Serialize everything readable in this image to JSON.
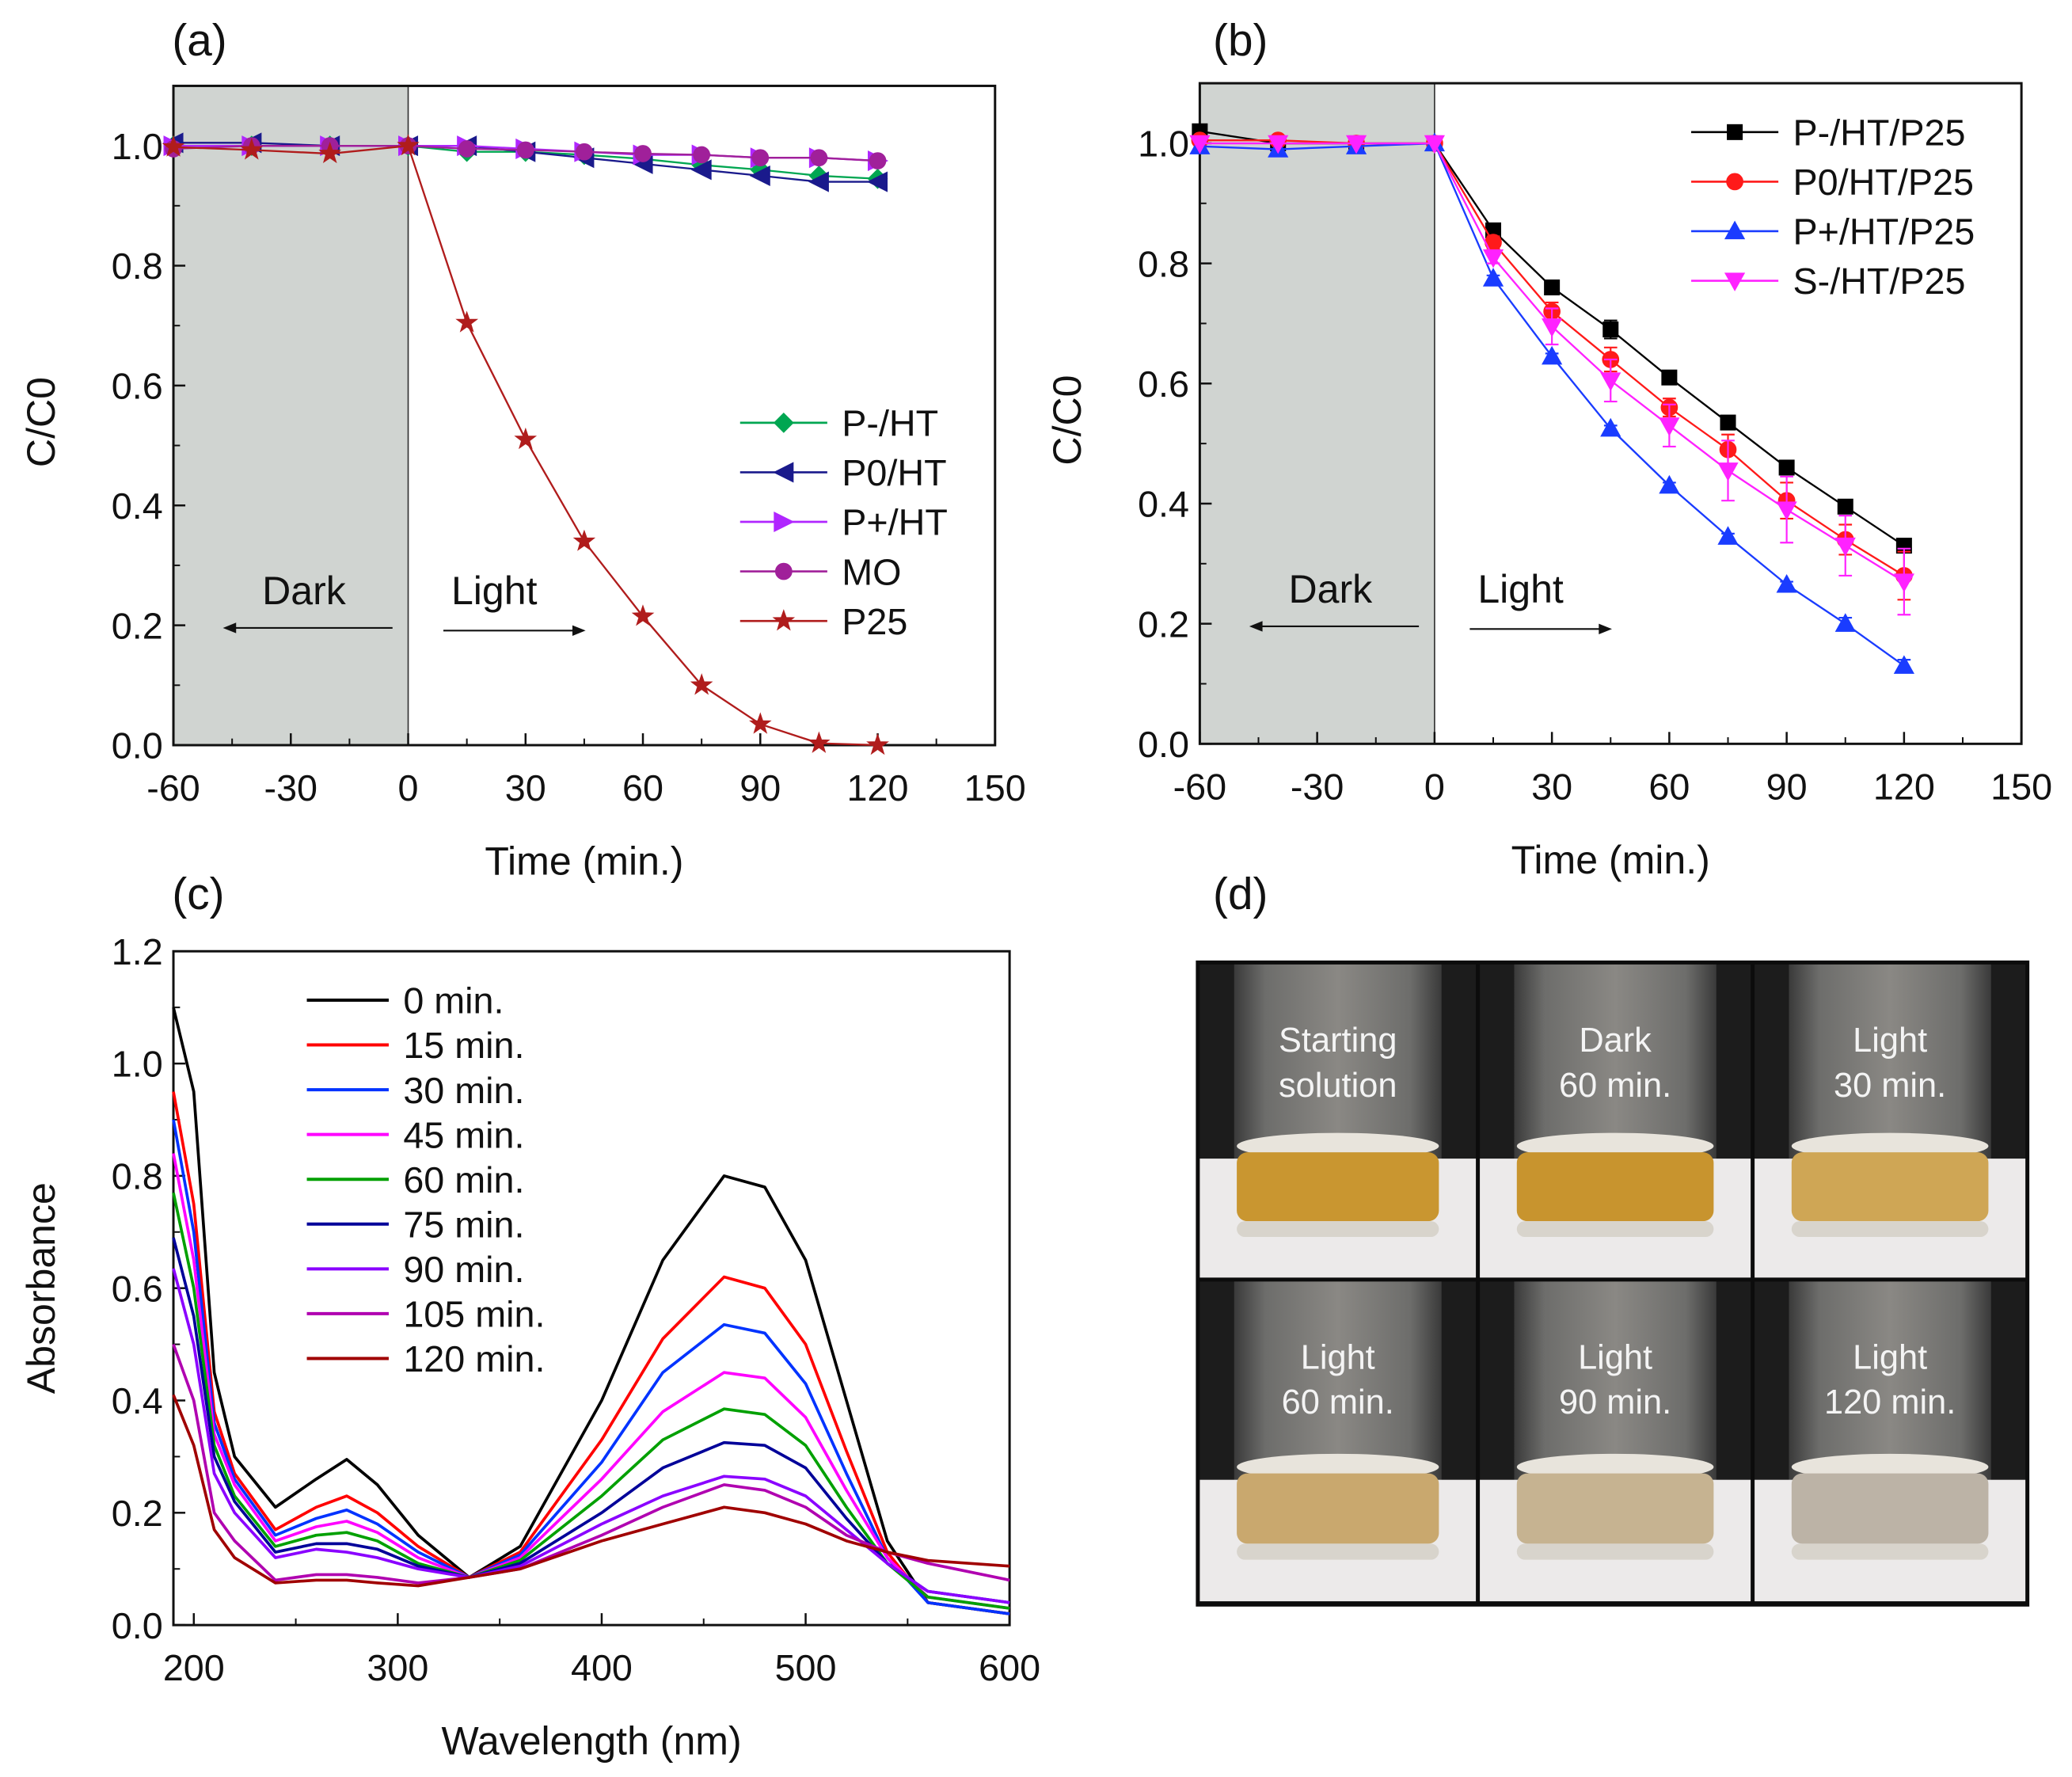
{
  "chart_data": [
    {
      "panel": "(a)",
      "type": "line",
      "xlabel": "Time (min.)",
      "ylabel": "C/C0",
      "xlim": [
        -60,
        150
      ],
      "ylim": [
        0,
        1.1
      ],
      "xticks": [
        "-60",
        "-30",
        "0",
        "30",
        "60",
        "90",
        "120",
        "150"
      ],
      "yticks": [
        "0.0",
        "0.2",
        "0.4",
        "0.6",
        "0.8",
        "1.0"
      ],
      "annotations": [
        "Dark",
        "Light"
      ],
      "dark_region": [
        -60,
        0
      ],
      "legend_position": "center-right",
      "x": [
        -60,
        -40,
        -20,
        0,
        15,
        30,
        45,
        60,
        75,
        90,
        105,
        120
      ],
      "series": [
        {
          "name": "P-/HT",
          "color": "#00a651",
          "marker": "diamond",
          "values": [
            1.0,
            1.0,
            1.0,
            1.0,
            0.99,
            0.99,
            0.985,
            0.978,
            0.968,
            0.96,
            0.95,
            0.945
          ]
        },
        {
          "name": "P0/HT",
          "color": "#1a1a8c",
          "marker": "triangle-left",
          "values": [
            1.005,
            1.005,
            1.0,
            1.0,
            1.0,
            0.99,
            0.98,
            0.97,
            0.96,
            0.95,
            0.94,
            0.94
          ]
        },
        {
          "name": "P+/HT",
          "color": "#b026ff",
          "marker": "triangle-right",
          "values": [
            1.0,
            1.0,
            1.0,
            1.0,
            1.0,
            0.995,
            0.99,
            0.985,
            0.985,
            0.98,
            0.98,
            0.975
          ]
        },
        {
          "name": "MO",
          "color": "#a0209a",
          "marker": "circle",
          "values": [
            0.995,
            1.0,
            1.0,
            1.0,
            0.995,
            0.993,
            0.99,
            0.987,
            0.985,
            0.98,
            0.98,
            0.975
          ]
        },
        {
          "name": "P25",
          "color": "#b01c1c",
          "marker": "star",
          "values": [
            0.998,
            0.993,
            0.987,
            1.0,
            0.705,
            0.51,
            0.34,
            0.215,
            0.1,
            0.035,
            0.003,
            0.0
          ]
        }
      ]
    },
    {
      "panel": "(b)",
      "type": "line",
      "xlabel": "Time (min.)",
      "ylabel": "C/C0",
      "xlim": [
        -60,
        150
      ],
      "ylim": [
        0,
        1.1
      ],
      "xticks": [
        "-60",
        "-30",
        "0",
        "30",
        "60",
        "90",
        "120",
        "150"
      ],
      "yticks": [
        "0.0",
        "0.2",
        "0.4",
        "0.6",
        "0.8",
        "1.0"
      ],
      "annotations": [
        "Dark",
        "Light"
      ],
      "dark_region": [
        -60,
        0
      ],
      "legend_position": "top-right",
      "x": [
        -60,
        -40,
        -20,
        0,
        15,
        30,
        45,
        60,
        75,
        90,
        105,
        120
      ],
      "series": [
        {
          "name": "P-/HT/P25",
          "color": "#000000",
          "marker": "square",
          "values": [
            1.02,
            1.0,
            1.0,
            1.0,
            0.855,
            0.76,
            0.69,
            0.61,
            0.535,
            0.46,
            0.395,
            0.33
          ],
          "errors": [
            0,
            0,
            0,
            0,
            0.008,
            0.008,
            0.015,
            0.01,
            0.008,
            0.008,
            0.008,
            0.01
          ]
        },
        {
          "name": "P0/HT/P25",
          "color": "#ff1a1a",
          "marker": "circle",
          "values": [
            1.005,
            1.005,
            1.0,
            1.0,
            0.835,
            0.72,
            0.64,
            0.56,
            0.49,
            0.405,
            0.34,
            0.28
          ],
          "errors": [
            0,
            0,
            0,
            0,
            0.01,
            0.015,
            0.02,
            0.015,
            0.025,
            0.03,
            0.025,
            0.04
          ]
        },
        {
          "name": "P+/HT/P25",
          "color": "#1a3cff",
          "marker": "triangle-up",
          "values": [
            0.995,
            0.99,
            0.995,
            1.0,
            0.775,
            0.645,
            0.525,
            0.43,
            0.345,
            0.265,
            0.2,
            0.13
          ],
          "errors": [
            0,
            0,
            0,
            0,
            0.005,
            0.005,
            0.005,
            0.005,
            0.005,
            0.005,
            0.01,
            0.01
          ]
        },
        {
          "name": "S-/HT/P25",
          "color": "#ff22ff",
          "marker": "triangle-down",
          "values": [
            1.0,
            1.0,
            1.0,
            1.0,
            0.81,
            0.695,
            0.605,
            0.53,
            0.455,
            0.39,
            0.33,
            0.27
          ],
          "errors": [
            0,
            0,
            0,
            0,
            0.01,
            0.03,
            0.035,
            0.035,
            0.05,
            0.055,
            0.05,
            0.055
          ]
        }
      ]
    },
    {
      "panel": "(c)",
      "type": "line",
      "xlabel": "Wavelength (nm)",
      "ylabel": "Absorbance",
      "xlim": [
        190,
        600
      ],
      "ylim": [
        0,
        1.2
      ],
      "xticks": [
        "200",
        "300",
        "400",
        "500",
        "600"
      ],
      "yticks": [
        "0.0",
        "0.2",
        "0.4",
        "0.6",
        "0.8",
        "1.0",
        "1.2"
      ],
      "legend_position": "top-left",
      "x": [
        190,
        200,
        210,
        220,
        240,
        260,
        275,
        290,
        310,
        335,
        360,
        400,
        430,
        460,
        480,
        500,
        520,
        540,
        560,
        600
      ],
      "series": [
        {
          "name": "0 min.",
          "color": "#000000",
          "values": [
            1.1,
            0.95,
            0.45,
            0.3,
            0.21,
            0.26,
            0.295,
            0.25,
            0.16,
            0.085,
            0.14,
            0.4,
            0.65,
            0.8,
            0.78,
            0.65,
            0.4,
            0.15,
            0.04,
            0.02
          ]
        },
        {
          "name": "15 min.",
          "color": "#ff0000",
          "values": [
            0.95,
            0.75,
            0.38,
            0.27,
            0.17,
            0.21,
            0.23,
            0.2,
            0.14,
            0.085,
            0.13,
            0.33,
            0.51,
            0.62,
            0.6,
            0.5,
            0.31,
            0.13,
            0.04,
            0.02
          ]
        },
        {
          "name": "30 min.",
          "color": "#0033ff",
          "values": [
            0.9,
            0.7,
            0.36,
            0.26,
            0.16,
            0.19,
            0.205,
            0.18,
            0.13,
            0.085,
            0.125,
            0.29,
            0.45,
            0.535,
            0.52,
            0.43,
            0.27,
            0.12,
            0.04,
            0.02
          ]
        },
        {
          "name": "45 min.",
          "color": "#ff00ff",
          "values": [
            0.84,
            0.65,
            0.34,
            0.25,
            0.15,
            0.175,
            0.185,
            0.165,
            0.12,
            0.085,
            0.12,
            0.26,
            0.38,
            0.45,
            0.44,
            0.37,
            0.24,
            0.12,
            0.05,
            0.03
          ]
        },
        {
          "name": "60 min.",
          "color": "#00a000",
          "values": [
            0.77,
            0.6,
            0.32,
            0.23,
            0.14,
            0.16,
            0.165,
            0.15,
            0.11,
            0.085,
            0.115,
            0.23,
            0.33,
            0.385,
            0.375,
            0.32,
            0.21,
            0.11,
            0.05,
            0.03
          ]
        },
        {
          "name": "75 min.",
          "color": "#000099",
          "values": [
            0.69,
            0.55,
            0.3,
            0.22,
            0.13,
            0.145,
            0.145,
            0.135,
            0.105,
            0.085,
            0.11,
            0.2,
            0.28,
            0.325,
            0.32,
            0.28,
            0.19,
            0.11,
            0.06,
            0.04
          ]
        },
        {
          "name": "90 min.",
          "color": "#8a00ff",
          "values": [
            0.635,
            0.5,
            0.27,
            0.2,
            0.12,
            0.135,
            0.13,
            0.12,
            0.1,
            0.085,
            0.105,
            0.18,
            0.23,
            0.265,
            0.26,
            0.23,
            0.17,
            0.11,
            0.06,
            0.04
          ]
        },
        {
          "name": "105 min.",
          "color": "#b000b0",
          "values": [
            0.5,
            0.4,
            0.2,
            0.15,
            0.08,
            0.09,
            0.09,
            0.085,
            0.075,
            0.085,
            0.1,
            0.16,
            0.21,
            0.25,
            0.24,
            0.21,
            0.16,
            0.13,
            0.11,
            0.08
          ]
        },
        {
          "name": "120 min.",
          "color": "#a00000",
          "values": [
            0.41,
            0.32,
            0.17,
            0.12,
            0.075,
            0.08,
            0.08,
            0.075,
            0.07,
            0.085,
            0.1,
            0.15,
            0.18,
            0.21,
            0.2,
            0.18,
            0.15,
            0.13,
            0.115,
            0.105
          ]
        }
      ]
    }
  ],
  "panel_d": {
    "label": "(d)",
    "photos": [
      {
        "line1": "Starting",
        "line2": "solution",
        "liquid": "#c99630"
      },
      {
        "line1": "Dark",
        "line2": "60 min.",
        "liquid": "#c8942e"
      },
      {
        "line1": "Light",
        "line2": "30 min.",
        "liquid": "#cfa655"
      },
      {
        "line1": "Light",
        "line2": "60 min.",
        "liquid": "#c9a86e"
      },
      {
        "line1": "Light",
        "line2": "90 min.",
        "liquid": "#c6b391"
      },
      {
        "line1": "Light",
        "line2": "120 min.",
        "liquid": "#bcb3a6"
      }
    ]
  }
}
